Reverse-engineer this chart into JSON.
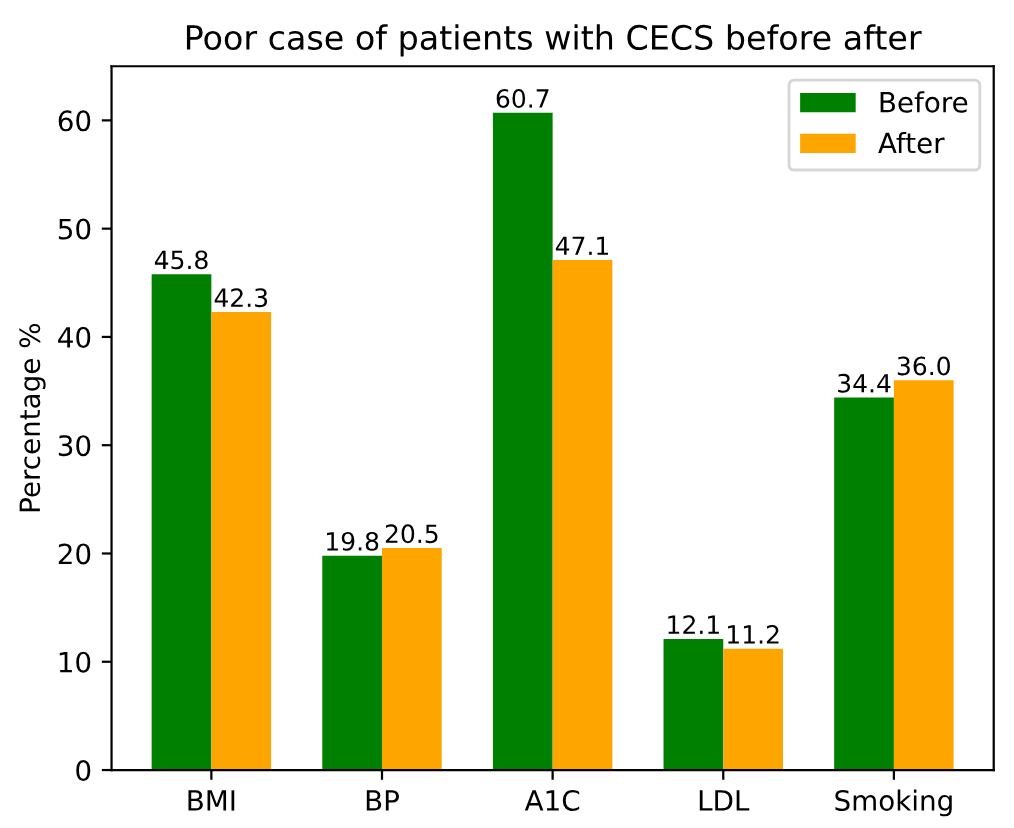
{
  "chart_data": {
    "type": "bar",
    "title": "Poor case of patients with CECS before after",
    "ylabel": "Percentage %",
    "categories": [
      "BMI",
      "BP",
      "A1C",
      "LDL",
      "Smoking"
    ],
    "series": [
      {
        "name": "Before",
        "color": "#008000",
        "values": [
          45.8,
          19.8,
          60.7,
          12.1,
          34.4
        ],
        "value_labels": [
          "45.8",
          "19.8",
          "60.7",
          "12.1",
          "34.4"
        ]
      },
      {
        "name": "After",
        "color": "#ffa500",
        "values": [
          42.3,
          20.5,
          47.1,
          11.2,
          36.0
        ],
        "value_labels": [
          "42.3",
          "20.5",
          "47.1",
          "11.2",
          "36.0"
        ]
      }
    ],
    "ylim": [
      0,
      65
    ],
    "yticks": [
      0,
      10,
      20,
      30,
      40,
      50,
      60
    ],
    "legend": "top right",
    "grid": false
  }
}
